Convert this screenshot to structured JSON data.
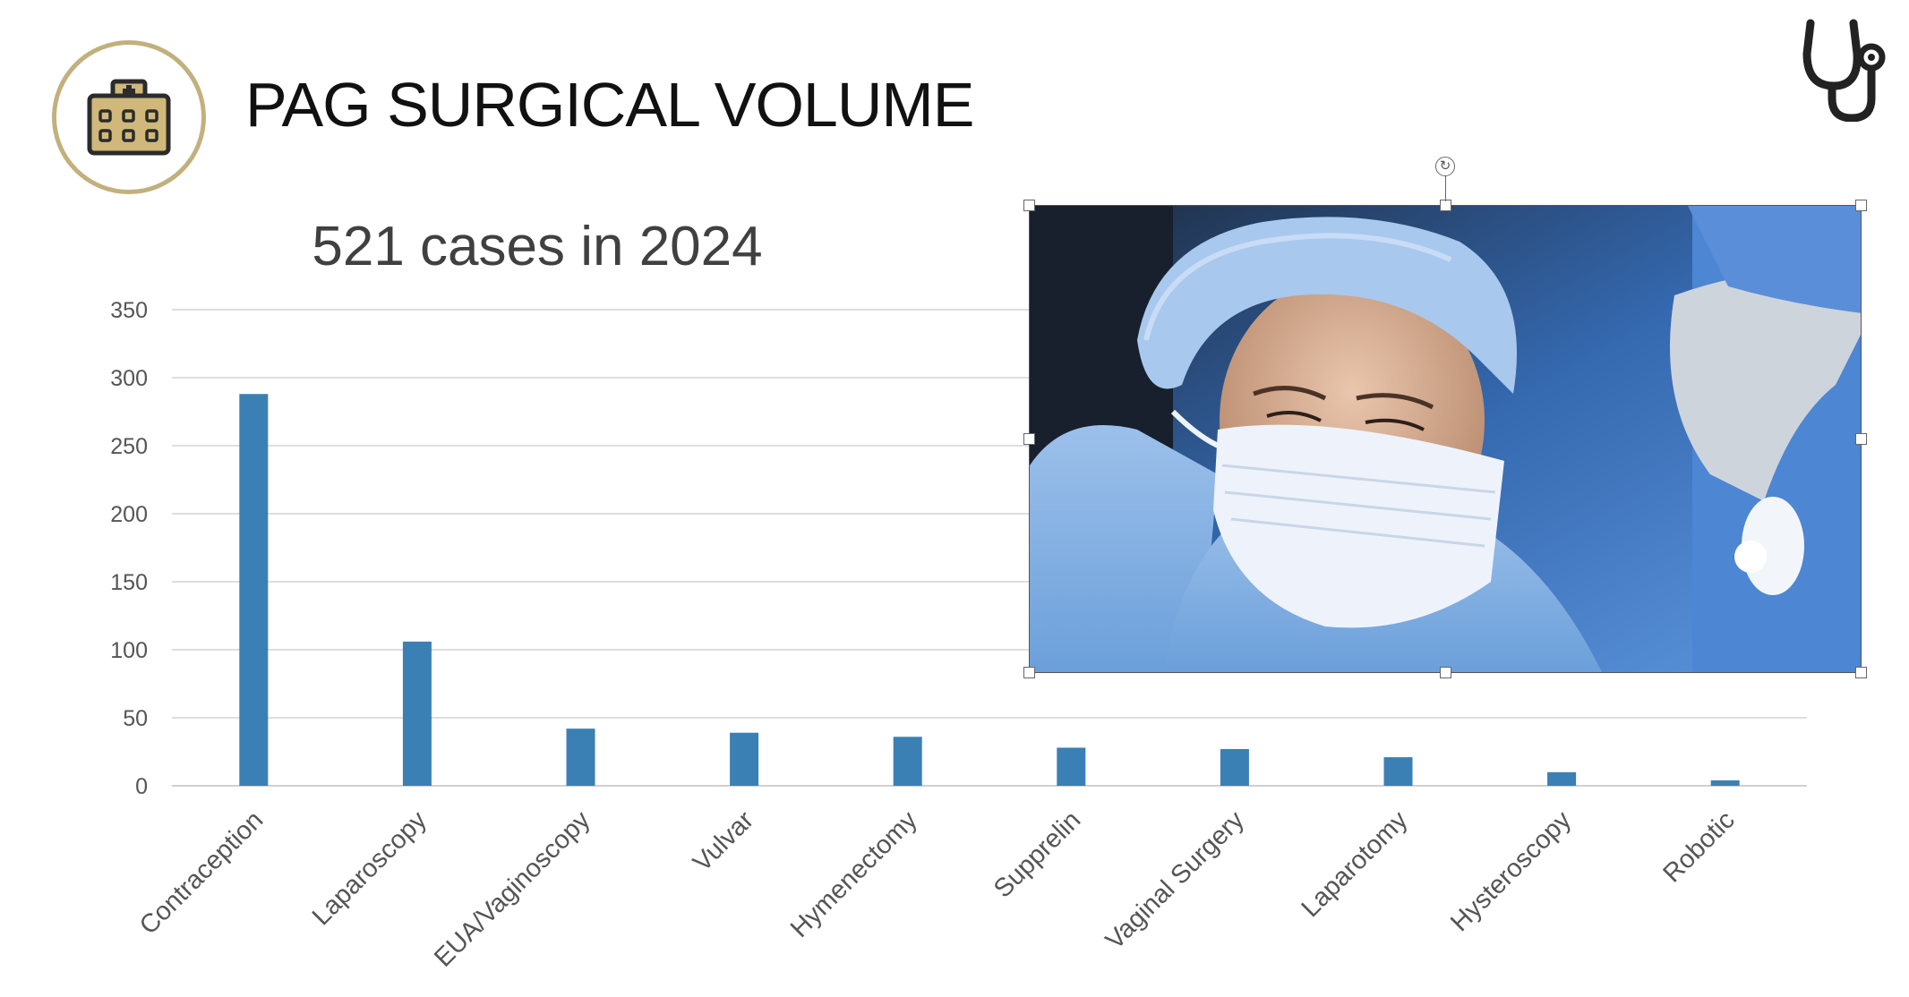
{
  "header": {
    "title": "PAG SURGICAL VOLUME",
    "logo_icon": "hospital-building-icon",
    "corner_icon": "stethoscope-icon"
  },
  "colors": {
    "bar": "#3a80b4",
    "logo_ring": "#c2b07d",
    "logo_fill": "#cfb879",
    "text": "#404040"
  },
  "photo": {
    "description_icon": "surgeon-photo",
    "selected": true
  },
  "chart_data": {
    "type": "bar",
    "title": "521 cases in 2024",
    "xlabel": "",
    "ylabel": "",
    "ylim": [
      0,
      350
    ],
    "yticks": [
      0,
      50,
      100,
      150,
      200,
      250,
      300,
      350
    ],
    "grid": true,
    "categories": [
      "Contraception",
      "Laparoscopy",
      "EUA/Vaginoscopy",
      "Vulvar",
      "Hymenectomy",
      "Supprelin",
      "Vaginal Surgery",
      "Laparotomy",
      "Hysteroscopy",
      "Robotic"
    ],
    "values": [
      288,
      106,
      42,
      39,
      36,
      28,
      27,
      21,
      10,
      4
    ]
  }
}
